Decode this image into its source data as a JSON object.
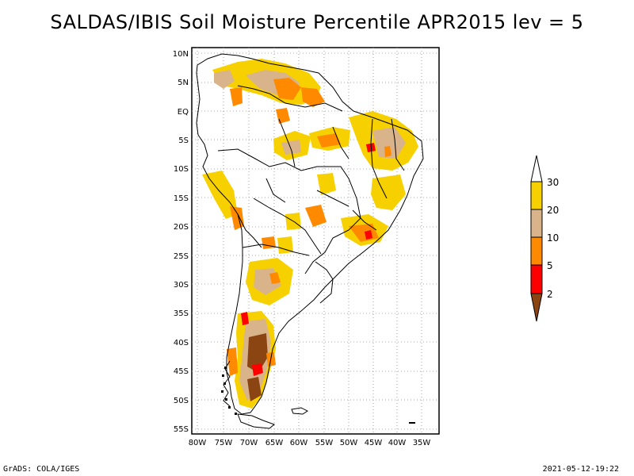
{
  "title": "SALDAS/IBIS Soil Moisture Percentile APR2015 lev = 5",
  "footer": {
    "left": "GrADS: COLA/IGES",
    "right": "2021-05-12-19:22"
  },
  "map": {
    "lat_labels": [
      "10N",
      "5N",
      "EQ",
      "5S",
      "10S",
      "15S",
      "20S",
      "25S",
      "30S",
      "35S",
      "40S",
      "45S",
      "50S",
      "55S"
    ],
    "lon_labels": [
      "80W",
      "75W",
      "70W",
      "65W",
      "60W",
      "55W",
      "50W",
      "45W",
      "40W",
      "35W"
    ],
    "lon_range": [
      -81,
      -28
    ],
    "lat_range": [
      -56,
      13
    ]
  },
  "legend": {
    "labels": [
      "30",
      "20",
      "10",
      "5",
      "2"
    ],
    "colors": {
      "top": "#ffffff",
      "30_20": "#f7d000",
      "20_10": "#d9b48a",
      "10_5": "#ff8a00",
      "5_2": "#ff0000",
      "bottom": "#8b4513"
    }
  }
}
